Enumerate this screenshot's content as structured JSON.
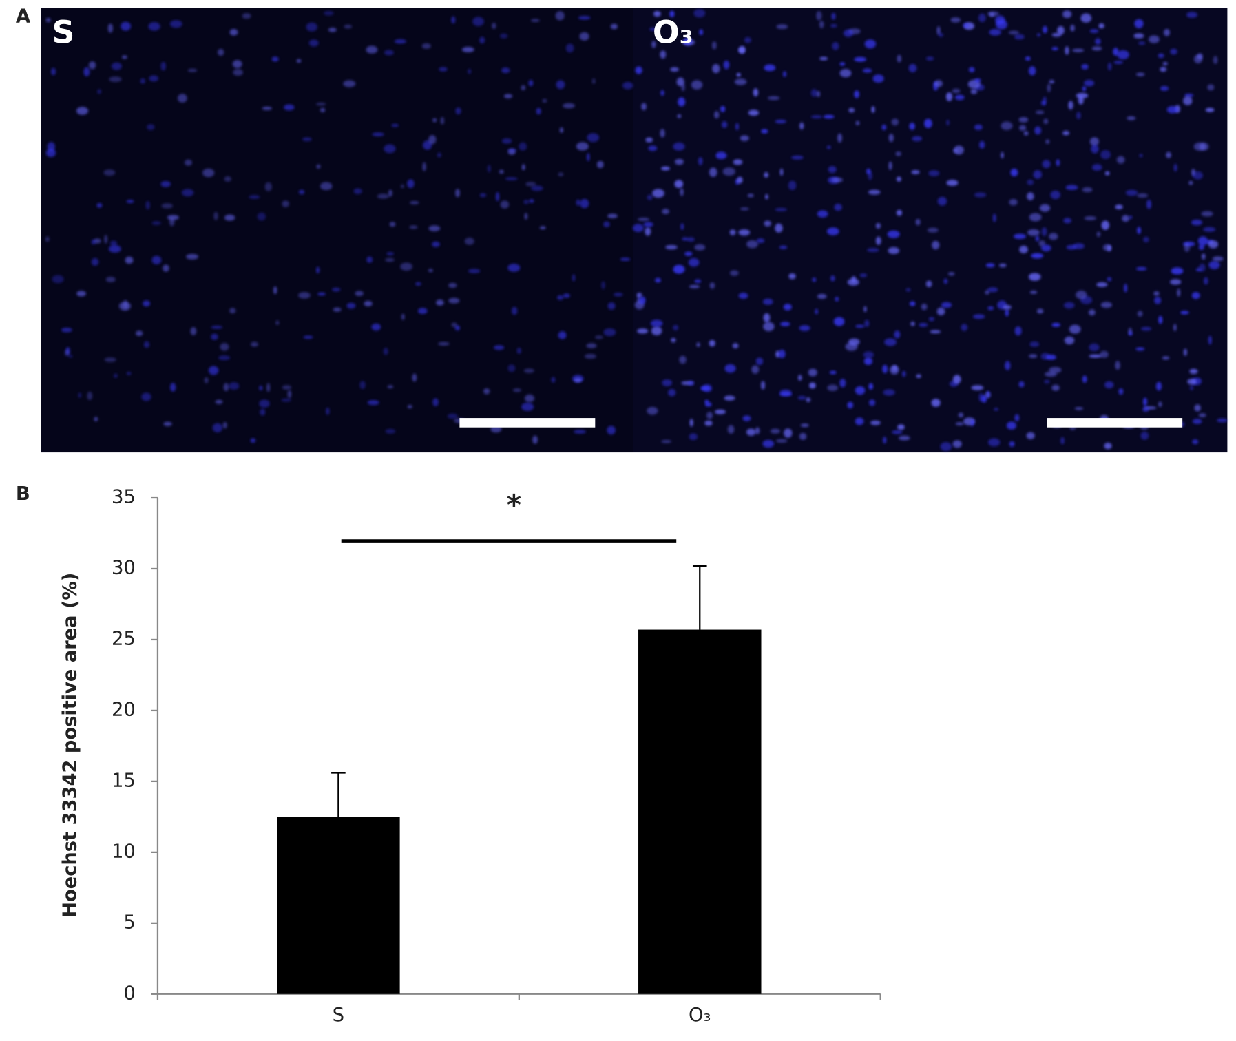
{
  "panel_labels": [
    "A",
    "B"
  ],
  "images": [
    {
      "label": "S"
    },
    {
      "label": "O₃"
    }
  ],
  "chart_data": {
    "type": "bar",
    "y_label": "Hoechst 33342 positive  area (%)",
    "categories": [
      "S",
      "O₃"
    ],
    "values": [
      12.5,
      25.7
    ],
    "errors": [
      3.1,
      4.5
    ],
    "color": "#000000",
    "ylim": [
      0,
      35
    ],
    "yticks": [
      0,
      5,
      10,
      15,
      20,
      25,
      30,
      35
    ],
    "annotation": "*"
  }
}
